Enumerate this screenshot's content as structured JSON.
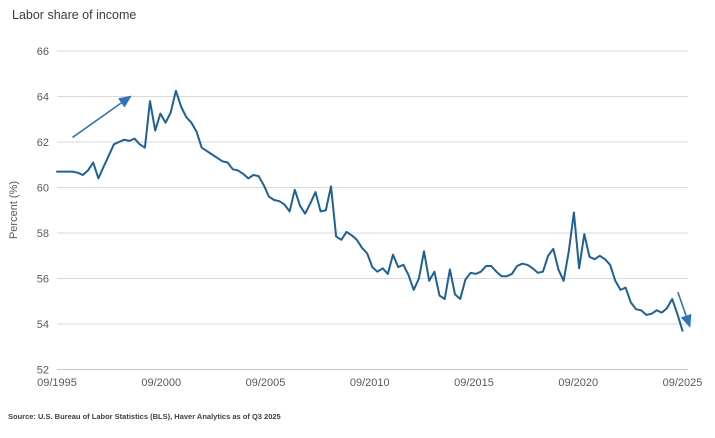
{
  "title": "Labor share of income",
  "source_note": "Source: U.S. Bureau of Labor Statistics (BLS), Haver Analytics as of Q3 2025",
  "chart_data": {
    "type": "line",
    "series_name": "Labor share of income",
    "frequency": "quarterly",
    "start_period": "09/1995",
    "end_period": "09/2025",
    "ylabel": "Percent (%)",
    "ylim": [
      52,
      66
    ],
    "yticks": [
      66,
      64,
      62,
      60,
      58,
      56,
      54,
      52
    ],
    "xticks": [
      "09/1995",
      "09/2000",
      "09/2005",
      "09/2010",
      "09/2015",
      "09/2020",
      "09/2025"
    ],
    "grid": "horizontal",
    "legend": "none",
    "values": [
      60.7,
      60.7,
      60.7,
      60.7,
      60.65,
      60.55,
      60.75,
      61.1,
      60.4,
      60.9,
      61.4,
      61.9,
      62.0,
      62.1,
      62.05,
      62.15,
      61.9,
      61.75,
      63.8,
      62.5,
      63.25,
      62.85,
      63.3,
      64.25,
      63.55,
      63.1,
      62.85,
      62.45,
      61.75,
      61.6,
      61.45,
      61.3,
      61.15,
      61.1,
      60.8,
      60.75,
      60.6,
      60.4,
      60.55,
      60.5,
      60.1,
      59.6,
      59.45,
      59.4,
      59.25,
      58.95,
      59.9,
      59.2,
      58.85,
      59.3,
      59.8,
      58.95,
      59.0,
      60.05,
      57.85,
      57.7,
      58.05,
      57.9,
      57.7,
      57.35,
      57.1,
      56.5,
      56.3,
      56.45,
      56.2,
      57.05,
      56.5,
      56.6,
      56.15,
      55.5,
      56.0,
      57.2,
      55.9,
      56.3,
      55.25,
      55.1,
      56.4,
      55.3,
      55.1,
      55.95,
      56.25,
      56.2,
      56.3,
      56.55,
      56.55,
      56.3,
      56.1,
      56.1,
      56.2,
      56.55,
      56.65,
      56.6,
      56.45,
      56.25,
      56.3,
      57.0,
      57.3,
      56.4,
      55.9,
      57.2,
      58.9,
      56.45,
      57.95,
      56.95,
      56.85,
      57.0,
      56.85,
      56.6,
      55.9,
      55.5,
      55.6,
      54.95,
      54.65,
      54.6,
      54.4,
      54.45,
      54.6,
      54.5,
      54.7,
      55.1,
      54.45,
      53.7
    ],
    "annotations": [
      {
        "name": "rising-trend-arrow",
        "shape": "arrow",
        "from_index": 3.0,
        "from_value": 62.2,
        "to_index": 14.2,
        "to_value": 64.0
      },
      {
        "name": "falling-end-arrow",
        "shape": "arrow",
        "from_index": 120.1,
        "from_value": 55.4,
        "to_index": 122.4,
        "to_value": 53.9
      }
    ],
    "colors": {
      "line": "#1f6095",
      "arrow": "#2e75b5",
      "gridline": "#d9d9d9",
      "baseline": "#c9c9c9",
      "axis_text": "#595959",
      "title_text": "#3b3b3b"
    }
  }
}
